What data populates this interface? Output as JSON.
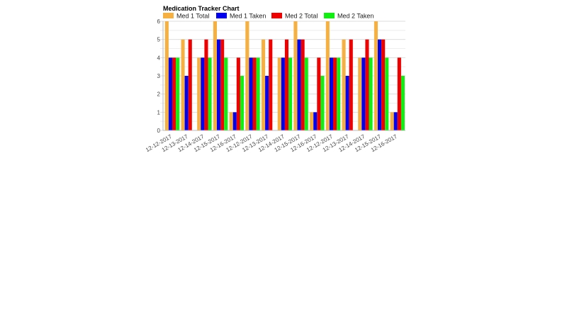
{
  "chart_data": {
    "type": "bar",
    "title": "Medication Tracker Chart",
    "legend_position": "top-left",
    "grid": true,
    "ylim": [
      0,
      6
    ],
    "yticks": [
      "0",
      "1",
      "2",
      "3",
      "4",
      "5",
      "6"
    ],
    "categories": [
      "12-12-2017",
      "12-13-2017",
      "12-14-2017",
      "12-15-2017",
      "12-16-2017",
      "12-12-2017",
      "12-13-2017",
      "12-14-2017",
      "12-15-2017",
      "12-16-2017",
      "12-12-2017",
      "12-13-2017",
      "12-14-2017",
      "12-15-2017",
      "12-16-2017"
    ],
    "series": [
      {
        "name": "Med 1 Total",
        "color": "#f5b041",
        "values": [
          6,
          5,
          4,
          6,
          1,
          6,
          5,
          4,
          6,
          1,
          6,
          5,
          4,
          6,
          1
        ]
      },
      {
        "name": "Med 1 Taken",
        "color": "#0000ee",
        "values": [
          4,
          3,
          4,
          5,
          1,
          4,
          3,
          4,
          5,
          1,
          4,
          3,
          4,
          5,
          1
        ]
      },
      {
        "name": "Med 2 Total",
        "color": "#ee0000",
        "values": [
          4,
          5,
          5,
          5,
          4,
          4,
          5,
          5,
          5,
          4,
          4,
          5,
          5,
          5,
          4
        ]
      },
      {
        "name": "Med 2 Taken",
        "color": "#11ee11",
        "values": [
          4,
          0,
          4,
          4,
          3,
          4,
          0,
          4,
          4,
          3,
          4,
          0,
          4,
          4,
          3
        ]
      }
    ]
  }
}
